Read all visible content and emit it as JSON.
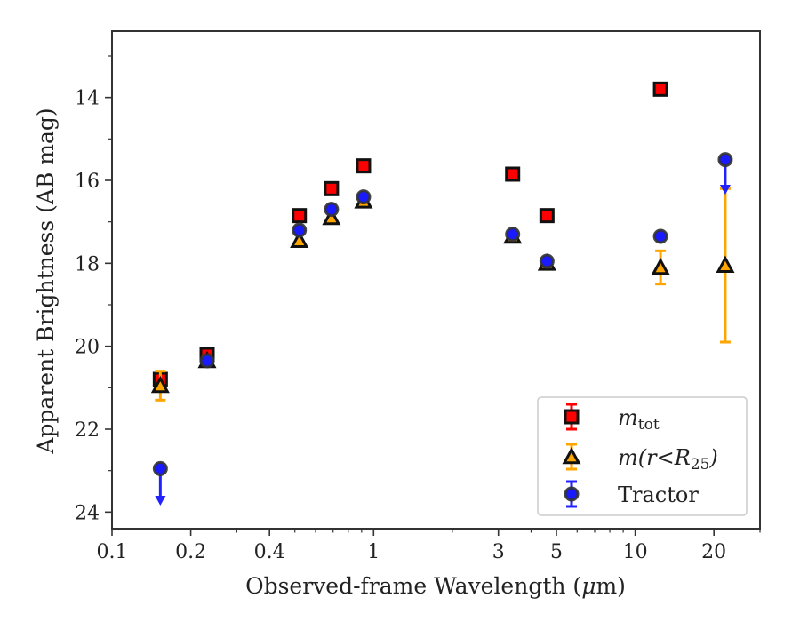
{
  "chart_data": {
    "type": "scatter",
    "xlabel_prefix": "Observed-frame Wavelength (",
    "xlabel_mu": "μ",
    "xlabel_suffix": "m)",
    "ylabel": "Apparent Brightness (AB mag)",
    "xscale": "log",
    "xlim": [
      0.1,
      30
    ],
    "ylim": [
      24.4,
      12.4
    ],
    "y_inverted": true,
    "grid": false,
    "legend_position": "bottom-right",
    "x_ticks": [
      {
        "value": 0.1,
        "label": "0.1"
      },
      {
        "value": 0.2,
        "label": "0.2"
      },
      {
        "value": 0.4,
        "label": "0.4"
      },
      {
        "value": 1,
        "label": "1"
      },
      {
        "value": 3,
        "label": "3"
      },
      {
        "value": 5,
        "label": "5"
      },
      {
        "value": 10,
        "label": "10"
      },
      {
        "value": 20,
        "label": "20"
      }
    ],
    "y_ticks": [
      {
        "value": 14,
        "label": "14"
      },
      {
        "value": 16,
        "label": "16"
      },
      {
        "value": 18,
        "label": "18"
      },
      {
        "value": 20,
        "label": "20"
      },
      {
        "value": 22,
        "label": "22"
      },
      {
        "value": 24,
        "label": "24"
      }
    ],
    "series": [
      {
        "name": "m_tot",
        "legend_main": "m",
        "legend_sub": "tot",
        "marker": "square",
        "color": "#ff0000",
        "edge": "#111111",
        "errcolor": "#ff0000",
        "points": [
          {
            "x": 0.153,
            "y": 20.8,
            "err": 0.15
          },
          {
            "x": 0.231,
            "y": 20.2,
            "err": 0.1
          },
          {
            "x": 0.52,
            "y": 16.85,
            "err": 0
          },
          {
            "x": 0.69,
            "y": 16.2,
            "err": 0
          },
          {
            "x": 0.915,
            "y": 15.65,
            "err": 0
          },
          {
            "x": 3.4,
            "y": 15.85,
            "err": 0
          },
          {
            "x": 4.6,
            "y": 16.85,
            "err": 0
          },
          {
            "x": 12.5,
            "y": 13.8,
            "err": 0
          }
        ]
      },
      {
        "name": "m(r<R25)",
        "legend_main": "m(r<R",
        "legend_sub": "25",
        "legend_end": ")",
        "marker": "triangle",
        "color": "#ffa500",
        "edge": "#111111",
        "errcolor": "#ffa500",
        "points": [
          {
            "x": 0.153,
            "y": 20.95,
            "err": 0.35
          },
          {
            "x": 0.231,
            "y": 20.35,
            "err": 0.1
          },
          {
            "x": 0.52,
            "y": 17.45,
            "err": 0
          },
          {
            "x": 0.69,
            "y": 16.9,
            "err": 0
          },
          {
            "x": 0.915,
            "y": 16.5,
            "err": 0
          },
          {
            "x": 3.4,
            "y": 17.35,
            "err": 0
          },
          {
            "x": 4.6,
            "y": 18.0,
            "err": 0
          },
          {
            "x": 12.5,
            "y": 18.1,
            "err": 0.4
          },
          {
            "x": 22.1,
            "y": 18.05,
            "err": 1.85
          }
        ]
      },
      {
        "name": "Tractor",
        "legend_main": "Tractor",
        "marker": "circle",
        "color": "#1a1aff",
        "edge": "#333333",
        "errcolor": "#2222ff",
        "points": [
          {
            "x": 0.153,
            "y": 22.95,
            "upper_limit": true,
            "limit_to": 23.8
          },
          {
            "x": 0.231,
            "y": 20.35,
            "err": 0
          },
          {
            "x": 0.52,
            "y": 17.2,
            "err": 0
          },
          {
            "x": 0.69,
            "y": 16.7,
            "err": 0
          },
          {
            "x": 0.915,
            "y": 16.4,
            "err": 0
          },
          {
            "x": 3.4,
            "y": 17.3,
            "err": 0
          },
          {
            "x": 4.6,
            "y": 17.95,
            "err": 0
          },
          {
            "x": 12.5,
            "y": 17.35,
            "err": 0
          },
          {
            "x": 22.1,
            "y": 15.5,
            "upper_limit": true,
            "limit_to": 16.3
          }
        ]
      }
    ]
  }
}
